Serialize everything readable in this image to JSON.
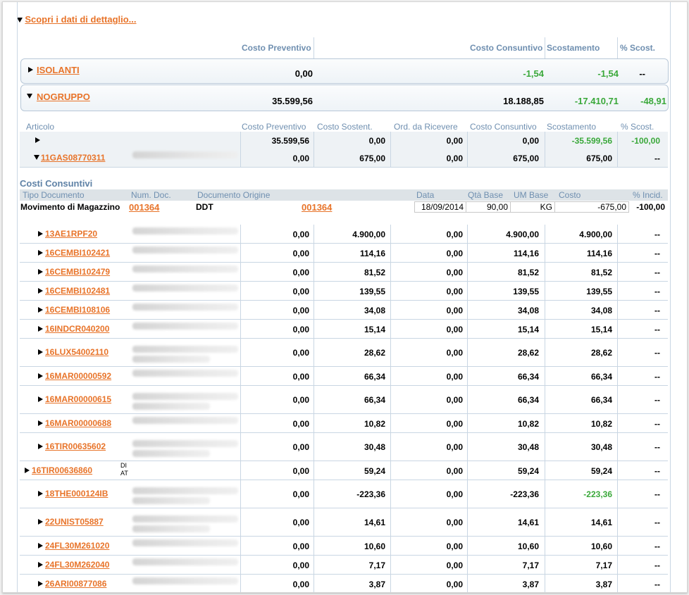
{
  "header": {
    "toggle_label": "Scopri i dati di dettaglio..."
  },
  "top_columns": {
    "costo_preventivo": "Costo Preventivo",
    "costo_consuntivo": "Costo Consuntivo",
    "scostamento": "Scostamento",
    "pct_scost": "% Scost."
  },
  "groups": [
    {
      "name": "ISOLANTI",
      "preventivo": "0,00",
      "consuntivo": "-1,54",
      "scostamento": "-1,54",
      "pct": "--"
    },
    {
      "name": "NOGRUPPO",
      "preventivo": "35.599,56",
      "consuntivo": "18.188,85",
      "scostamento": "-17.410,71",
      "pct": "-48,91"
    }
  ],
  "detail_columns": {
    "articolo": "Articolo",
    "costo_preventivo": "Costo Preventivo",
    "costo_sostent": "Costo Sostent.",
    "ord_ricevere": "Ord. da Ricevere",
    "costo_consuntivo": "Costo Consuntivo",
    "scostamento": "Scostamento",
    "pct_scost": "% Scost."
  },
  "first_rows": [
    {
      "code": "",
      "preventivo": "35.599,56",
      "sostent": "0,00",
      "ordini": "0,00",
      "consuntivo": "0,00",
      "scostamento": "-35.599,56",
      "pct": "-100,00"
    },
    {
      "code": "11GAS08770311",
      "preventivo": "0,00",
      "sostent": "675,00",
      "ordini": "0,00",
      "consuntivo": "675,00",
      "scostamento": "675,00",
      "pct": "--"
    }
  ],
  "costi_consuntivi": {
    "title": "Costi Consuntivi",
    "columns": {
      "tipo": "Tipo Documento",
      "num": "Num. Doc.",
      "origine": "Documento Origine",
      "data": "Data",
      "qta": "Qtà Base",
      "um": "UM Base",
      "costo": "Costo",
      "incid": "% Incid."
    },
    "row": {
      "tipo": "Movimento di Magazzino",
      "num": "001364",
      "origine_tipo": "DDT",
      "origine_num": "001364",
      "data": "18/09/2014",
      "qta": "90,00",
      "um": "KG",
      "costo": "-675,00",
      "incid": "-100,00"
    }
  },
  "articles": [
    {
      "code": "13AE1RPF20",
      "preventivo": "0,00",
      "sostent": "4.900,00",
      "ordini": "0,00",
      "consuntivo": "4.900,00",
      "scostamento": "4.900,00",
      "pct": "--"
    },
    {
      "code": "16CEMBI102421",
      "preventivo": "0,00",
      "sostent": "114,16",
      "ordini": "0,00",
      "consuntivo": "114,16",
      "scostamento": "114,16",
      "pct": "--"
    },
    {
      "code": "16CEMBI102479",
      "preventivo": "0,00",
      "sostent": "81,52",
      "ordini": "0,00",
      "consuntivo": "81,52",
      "scostamento": "81,52",
      "pct": "--"
    },
    {
      "code": "16CEMBI102481",
      "preventivo": "0,00",
      "sostent": "139,55",
      "ordini": "0,00",
      "consuntivo": "139,55",
      "scostamento": "139,55",
      "pct": "--"
    },
    {
      "code": "16CEMBI108106",
      "preventivo": "0,00",
      "sostent": "34,08",
      "ordini": "0,00",
      "consuntivo": "34,08",
      "scostamento": "34,08",
      "pct": "--"
    },
    {
      "code": "16INDCR040200",
      "preventivo": "0,00",
      "sostent": "15,14",
      "ordini": "0,00",
      "consuntivo": "15,14",
      "scostamento": "15,14",
      "pct": "--"
    },
    {
      "code": "16LUX54002110",
      "preventivo": "0,00",
      "sostent": "28,62",
      "ordini": "0,00",
      "consuntivo": "28,62",
      "scostamento": "28,62",
      "pct": "--"
    },
    {
      "code": "16MAR00000592",
      "preventivo": "0,00",
      "sostent": "66,34",
      "ordini": "0,00",
      "consuntivo": "66,34",
      "scostamento": "66,34",
      "pct": "--"
    },
    {
      "code": "16MAR00000615",
      "preventivo": "0,00",
      "sostent": "66,34",
      "ordini": "0,00",
      "consuntivo": "66,34",
      "scostamento": "66,34",
      "pct": "--"
    },
    {
      "code": "16MAR00000688",
      "preventivo": "0,00",
      "sostent": "10,82",
      "ordini": "0,00",
      "consuntivo": "10,82",
      "scostamento": "10,82",
      "pct": "--"
    },
    {
      "code": "16TIR00635602",
      "preventivo": "0,00",
      "sostent": "30,48",
      "ordini": "0,00",
      "consuntivo": "30,48",
      "scostamento": "30,48",
      "pct": "--"
    },
    {
      "code": "16TIR00636860",
      "desc1": "DI",
      "desc2": "AT",
      "preventivo": "0,00",
      "sostent": "59,24",
      "ordini": "0,00",
      "consuntivo": "59,24",
      "scostamento": "59,24",
      "pct": "--"
    },
    {
      "code": "18THE000124IB",
      "preventivo": "0,00",
      "sostent": "-223,36",
      "ordini": "0,00",
      "consuntivo": "-223,36",
      "scostamento": "-223,36",
      "pct": "--"
    },
    {
      "code": "22UNIST05887",
      "preventivo": "0,00",
      "sostent": "14,61",
      "ordini": "0,00",
      "consuntivo": "14,61",
      "scostamento": "14,61",
      "pct": "--"
    },
    {
      "code": "24FL30M261020",
      "preventivo": "0,00",
      "sostent": "10,60",
      "ordini": "0,00",
      "consuntivo": "10,60",
      "scostamento": "10,60",
      "pct": "--"
    },
    {
      "code": "24FL30M262040",
      "preventivo": "0,00",
      "sostent": "7,17",
      "ordini": "0,00",
      "consuntivo": "7,17",
      "scostamento": "7,17",
      "pct": "--"
    },
    {
      "code": "26ARI00877086",
      "preventivo": "0,00",
      "sostent": "3,87",
      "ordini": "0,00",
      "consuntivo": "3,87",
      "scostamento": "3,87",
      "pct": "--"
    }
  ],
  "colors": {
    "link": "#e8742a",
    "header_blue": "#6f8fb0",
    "positive_green": "#3aa83a",
    "border": "#c9d6e3"
  }
}
